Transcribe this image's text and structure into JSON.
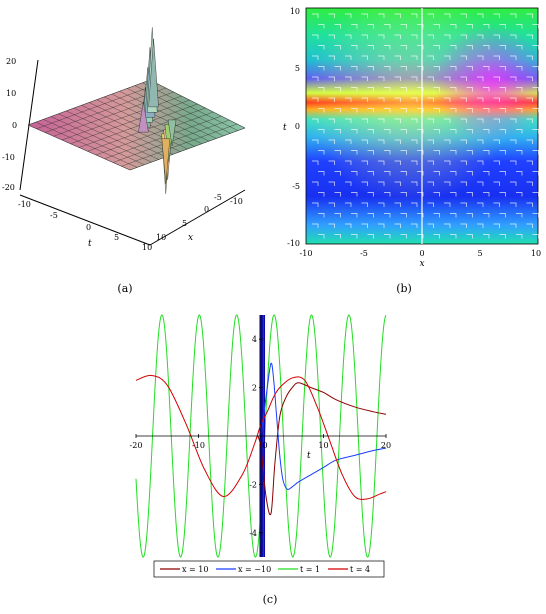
{
  "captions": {
    "a": "(a)",
    "b": "(b)",
    "c": "(c)"
  },
  "colors": {
    "red": "#d40000",
    "darkred": "#8b0000",
    "blue": "#1a3cff",
    "green": "#22dd22",
    "bar": "#0a0aa8"
  },
  "chart_data": [
    {
      "id": "a",
      "type": "surface",
      "axes": {
        "z": {
          "ticks": [
            "20",
            "10",
            "0",
            "-10",
            "-20"
          ]
        },
        "t": {
          "label": "t",
          "ticks": [
            "-10",
            "-5",
            "0",
            "5",
            "10"
          ]
        },
        "x": {
          "label": "x",
          "ticks": [
            "10",
            "5",
            "0",
            "-5",
            "-10"
          ]
        }
      },
      "zlim": [
        -20,
        20
      ],
      "tlim": [
        -10,
        10
      ],
      "xlim": [
        -10,
        10
      ]
    },
    {
      "id": "b",
      "type": "heatmap",
      "xlabel": "x",
      "ylabel": "t",
      "xticks": [
        "-10",
        "-5",
        "0",
        "5",
        "10"
      ],
      "yticks": [
        "10",
        "5",
        "0",
        "-5",
        "-10"
      ],
      "xlim": [
        -10,
        10
      ],
      "ylim": [
        -10,
        10
      ]
    },
    {
      "id": "c",
      "type": "line",
      "xlabel": "t",
      "xlim": [
        -20,
        20
      ],
      "ylim": [
        -5,
        5
      ],
      "xticks": [
        "-20",
        "-10",
        "0",
        "10",
        "20"
      ],
      "yticks": [
        "4",
        "2",
        "-2",
        "-4"
      ],
      "series": [
        {
          "name": "x = 10",
          "color": "#8b0000",
          "x": [
            -0.5,
            0,
            0.8,
            1.6,
            2.2,
            3,
            4,
            5,
            6,
            8,
            10,
            12,
            15,
            18,
            20
          ],
          "y": [
            0,
            -0.5,
            -2.5,
            -3.2,
            -1.2,
            0.8,
            1.6,
            2.0,
            2.2,
            2.0,
            1.8,
            1.5,
            1.2,
            1.0,
            0.9
          ]
        },
        {
          "name": "x = −10",
          "color": "#1a3cff",
          "x": [
            0,
            1,
            1.6,
            2.0,
            2.5,
            3,
            3.5,
            4.2,
            5,
            6,
            8,
            10,
            12,
            15,
            18,
            20
          ],
          "y": [
            0,
            2.0,
            3.0,
            2.4,
            0.8,
            -0.8,
            -1.8,
            -2.2,
            -2.1,
            -1.9,
            -1.6,
            -1.3,
            -1.0,
            -0.8,
            -0.6,
            -0.5
          ]
        },
        {
          "name": "t = 1",
          "color": "#22dd22",
          "function": "5*sin(1.05*(t-0.6))",
          "x": [
            -20,
            20
          ]
        },
        {
          "name": "t = 4",
          "color": "#d40000",
          "x": [
            -20,
            -17.5,
            -15,
            -12,
            -9,
            -6,
            -3,
            -1,
            0,
            1,
            2,
            3,
            5,
            7,
            9,
            11,
            13,
            15,
            17,
            19,
            20
          ],
          "y": [
            2.3,
            2.5,
            2.1,
            0.5,
            -1.4,
            -2.5,
            -1.6,
            -0.3,
            0.5,
            1.0,
            1.6,
            2.0,
            2.4,
            2.3,
            1.2,
            -0.2,
            -1.6,
            -2.5,
            -2.6,
            -2.4,
            -2.3
          ]
        }
      ],
      "legend_position": "bottom"
    }
  ]
}
